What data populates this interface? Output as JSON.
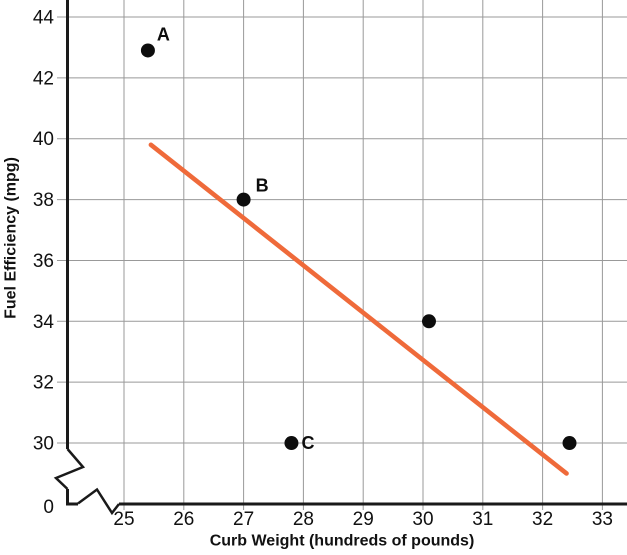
{
  "chart_data": {
    "type": "scatter",
    "title": "",
    "xlabel": "Curb Weight (hundreds of pounds)",
    "ylabel": "Fuel Efficiency (mpg)",
    "x_axis": {
      "tick_values": [
        25,
        26,
        27,
        28,
        29,
        30,
        31,
        32,
        33
      ],
      "tick_labels": [
        "25",
        "26",
        "27",
        "28",
        "29",
        "30",
        "31",
        "32",
        "33"
      ],
      "axis_break_before_first_tick": true
    },
    "y_axis": {
      "tick_values": [
        0,
        30,
        32,
        34,
        36,
        38,
        40,
        42,
        44
      ],
      "tick_labels": [
        "0",
        "30",
        "32",
        "34",
        "36",
        "38",
        "40",
        "42",
        "44"
      ],
      "axis_break_between": [
        0,
        30
      ]
    },
    "grid": true,
    "legend": false,
    "points": [
      {
        "label": "A",
        "x": 25.4,
        "y": 42.9
      },
      {
        "label": "B",
        "x": 27.0,
        "y": 38.0
      },
      {
        "label": "C",
        "x": 27.8,
        "y": 30.0
      },
      {
        "label": "",
        "x": 30.1,
        "y": 34.0
      },
      {
        "label": "",
        "x": 32.45,
        "y": 30.0
      }
    ],
    "trendline": {
      "x1": 25.45,
      "y1": 39.8,
      "x2": 32.4,
      "y2": 29.0
    },
    "colors": {
      "trendline": "#EF6A3A",
      "points": "#0d0d0d",
      "grid": "#999999",
      "axis": "#1a1a1a",
      "text": "#111111",
      "background": "#ffffff"
    }
  }
}
